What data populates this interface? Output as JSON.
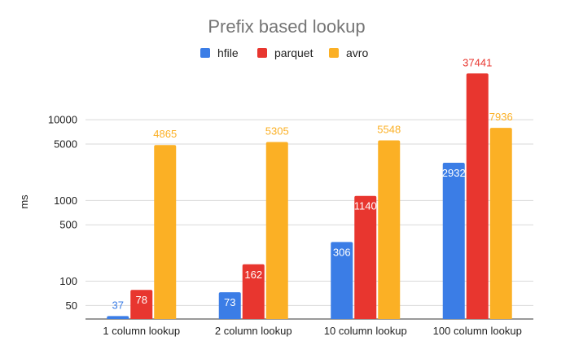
{
  "chart_data": {
    "type": "bar",
    "title": "Prefix based lookup",
    "ylabel": "ms",
    "xlabel": "",
    "yscale": "log",
    "ylim": [
      34,
      60000
    ],
    "yticks": [
      50,
      100,
      500,
      1000,
      5000,
      10000
    ],
    "categories": [
      "1 column lookup",
      "2 column lookup",
      "10 column lookup",
      "100 column lookup"
    ],
    "series": [
      {
        "name": "hfile",
        "color": "#3b7de6",
        "values": [
          37,
          73,
          306,
          2932
        ]
      },
      {
        "name": "parquet",
        "color": "#e8362f",
        "values": [
          78,
          162,
          1140,
          37441
        ]
      },
      {
        "name": "avro",
        "color": "#fbb025",
        "values": [
          4865,
          5305,
          5548,
          7936
        ]
      }
    ],
    "legend_position": "top",
    "grid": true
  }
}
